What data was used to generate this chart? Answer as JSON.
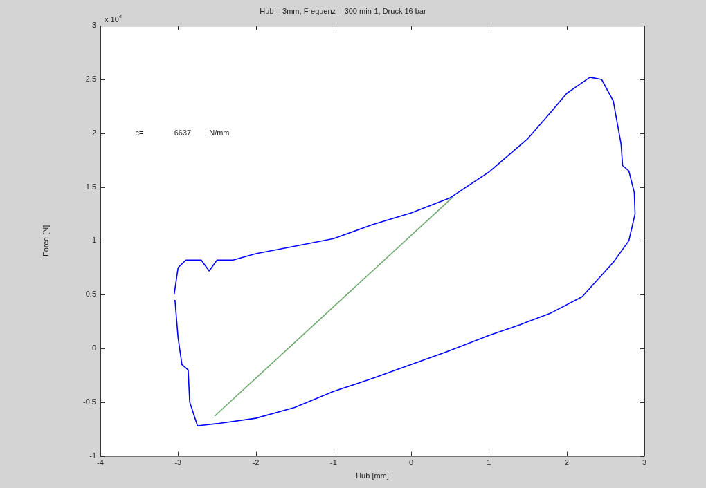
{
  "chart_data": {
    "type": "line",
    "title": "Hub = 3mm, Frequenz = 300 min-1, Druck 16 bar",
    "xlabel": "Hub [mm]",
    "ylabel": "Force [N]",
    "xlim": [
      -4,
      3
    ],
    "xticks": [
      -4,
      -3,
      -2,
      -1,
      0,
      1,
      2,
      3
    ],
    "ylim": [
      -1,
      3
    ],
    "yticks": [
      -1,
      -0.5,
      0,
      0.5,
      1,
      1.5,
      2,
      2.5,
      3
    ],
    "grid": false,
    "annotations": [
      "x 10$^{4}$",
      "c=",
      "6637",
      "N/mm"
    ],
    "series": [
      {
        "color": "#0000ff",
        "x": [
          -3.05,
          -3.0,
          -2.9,
          -2.7,
          -2.6,
          -2.5,
          -2.3,
          -2.0,
          -1.5,
          -1.0,
          -0.5,
          0,
          0.5,
          1.0,
          1.5,
          1.8,
          2.0,
          2.1,
          2.3,
          2.45,
          2.6,
          2.7,
          2.72,
          2.8,
          2.87,
          2.88,
          2.8,
          2.6,
          2.2,
          1.8,
          1.4,
          1.0,
          0.5,
          0,
          -0.5,
          -1.0,
          -1.5,
          -2.0,
          -2.5,
          -2.75,
          -2.85,
          -2.87,
          -2.95,
          -3.0,
          -3.04
        ],
        "values": [
          0.5,
          0.75,
          0.82,
          0.82,
          0.72,
          0.82,
          0.82,
          0.88,
          0.95,
          1.02,
          1.15,
          1.26,
          1.4,
          1.64,
          1.95,
          2.2,
          2.37,
          2.42,
          2.52,
          2.5,
          2.3,
          1.9,
          1.7,
          1.65,
          1.45,
          1.25,
          1.0,
          0.8,
          0.48,
          0.33,
          0.22,
          0.12,
          -0.02,
          -0.15,
          -0.28,
          -0.4,
          -0.55,
          -0.65,
          -0.7,
          -0.72,
          -0.5,
          -0.2,
          -0.15,
          0.1,
          0.45
        ]
      },
      {
        "color": "#6aa86a",
        "x": [
          -2.53,
          0.54
        ],
        "values": [
          -0.63,
          1.41
        ]
      }
    ]
  }
}
